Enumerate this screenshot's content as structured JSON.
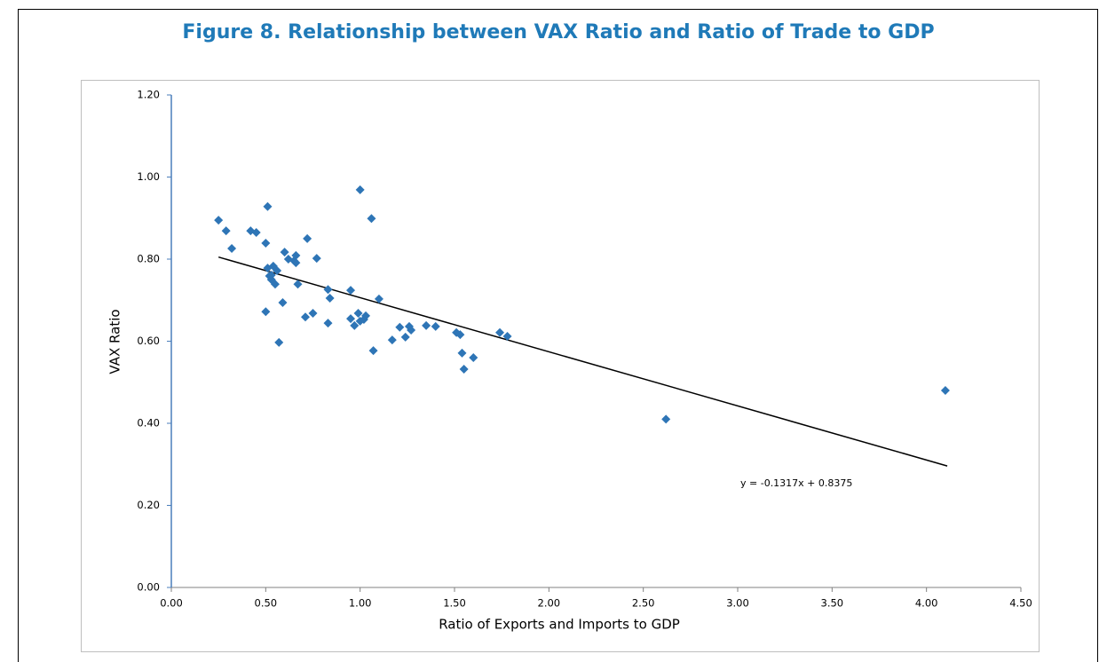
{
  "chart_data": {
    "type": "scatter",
    "title": "Figure 8.  Relationship between VAX Ratio and Ratio of Trade to GDP",
    "x_label": "Ratio of Exports and Imports to GDP",
    "y_label": "VAX Ratio",
    "annotation": "y = -0.1317x + 0.8375",
    "color": "#2e75b6",
    "x": [
      0.25,
      0.29,
      0.32,
      0.51,
      0.5,
      0.42,
      0.45,
      0.5,
      0.51,
      0.54,
      0.52,
      0.53,
      0.55,
      0.56,
      0.53,
      0.57,
      0.59,
      0.6,
      0.62,
      0.65,
      0.66,
      0.66,
      0.67,
      0.72,
      0.77,
      0.71,
      0.75,
      0.83,
      0.84,
      0.83,
      0.95,
      0.95,
      1.0,
      1.06,
      0.97,
      0.99,
      1.0,
      1.02,
      1.03,
      1.07,
      1.1,
      1.17,
      1.21,
      1.24,
      1.26,
      1.27,
      1.35,
      1.4,
      1.51,
      1.53,
      1.54,
      1.55,
      1.6,
      1.74,
      1.78,
      2.62,
      4.1
    ],
    "values": [
      0.895,
      0.869,
      0.826,
      0.928,
      0.839,
      0.869,
      0.865,
      0.672,
      0.778,
      0.783,
      0.759,
      0.75,
      0.739,
      0.772,
      0.761,
      0.597,
      0.694,
      0.817,
      0.8,
      0.796,
      0.809,
      0.791,
      0.739,
      0.85,
      0.802,
      0.659,
      0.668,
      0.726,
      0.705,
      0.644,
      0.724,
      0.655,
      0.969,
      0.899,
      0.638,
      0.668,
      0.649,
      0.653,
      0.662,
      0.577,
      0.703,
      0.603,
      0.634,
      0.61,
      0.636,
      0.627,
      0.638,
      0.636,
      0.621,
      0.616,
      0.571,
      0.532,
      0.56,
      0.621,
      0.612,
      0.41,
      0.48
    ],
    "trendline": {
      "x": [
        0.25,
        4.11
      ],
      "values": [
        0.805,
        0.296
      ]
    },
    "xlim": [
      0,
      4.5
    ],
    "ylim": [
      0,
      1.2
    ],
    "xticks": [
      {
        "value": 0,
        "label": "0.00"
      },
      {
        "value": 0.5,
        "label": "0.50"
      },
      {
        "value": 1,
        "label": "1.00"
      },
      {
        "value": 1.5,
        "label": "1.50"
      },
      {
        "value": 2,
        "label": "2.00"
      },
      {
        "value": 2.5,
        "label": "2.50"
      },
      {
        "value": 3,
        "label": "3.00"
      },
      {
        "value": 3.5,
        "label": "3.50"
      },
      {
        "value": 4,
        "label": "4.00"
      },
      {
        "value": 4.5,
        "label": "4.50"
      }
    ],
    "yticks": [
      {
        "value": 0,
        "label": "0.00"
      },
      {
        "value": 0.2,
        "label": "0.20"
      },
      {
        "value": 0.4,
        "label": "0.40"
      },
      {
        "value": 0.6,
        "label": "0.60"
      },
      {
        "value": 0.8,
        "label": "0.80"
      },
      {
        "value": 1,
        "label": "1.00"
      },
      {
        "value": 1.2,
        "label": "1.20"
      }
    ]
  }
}
